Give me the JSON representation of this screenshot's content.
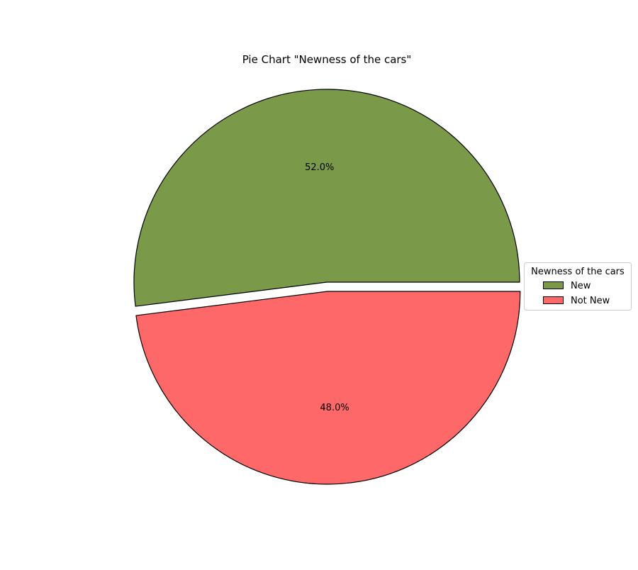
{
  "chart_data": {
    "type": "pie",
    "title": "Pie Chart \"Newness of the cars\"",
    "categories": [
      "New",
      "Not New"
    ],
    "values": [
      52.0,
      48.0
    ],
    "percent_labels": [
      "52.0%",
      "48.0%"
    ],
    "colors": [
      "#7b9a49",
      "#ff6868"
    ],
    "edge_color": "#000000",
    "exploded": [
      false,
      true
    ],
    "start_angle_deg": 0,
    "direction": "counterclockwise",
    "legend": {
      "title": "Newness of the cars",
      "placement": "center-right",
      "entries": [
        "New",
        "Not New"
      ]
    }
  }
}
